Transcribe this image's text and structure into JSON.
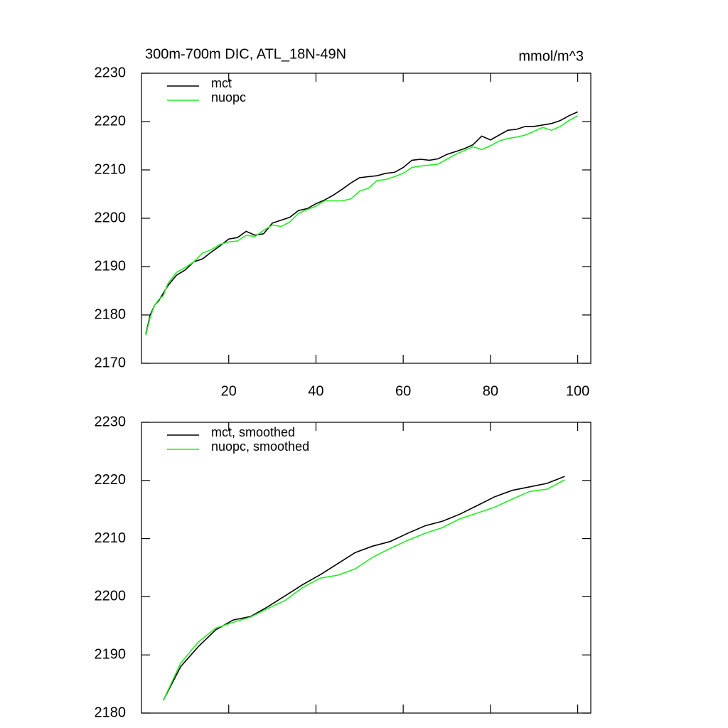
{
  "chart_data": [
    {
      "type": "line",
      "title": "300m-700m DIC, ATL_18N-49N",
      "units": "mmol/m^3",
      "x": [
        1,
        2,
        3,
        4,
        5,
        6,
        8,
        10,
        12,
        14,
        16,
        18,
        20,
        22,
        24,
        26,
        28,
        30,
        32,
        34,
        36,
        38,
        40,
        42,
        44,
        46,
        48,
        50,
        52,
        54,
        56,
        58,
        60,
        62,
        64,
        66,
        68,
        70,
        72,
        74,
        76,
        78,
        80,
        82,
        84,
        86,
        88,
        90,
        92,
        94,
        96,
        98,
        100
      ],
      "series": [
        {
          "name": "mct",
          "color": "#000000",
          "values": [
            2176,
            2180,
            2182,
            2183,
            2184.5,
            2186,
            2188.2,
            2189.3,
            2191,
            2191.6,
            2193,
            2194.3,
            2195.7,
            2196,
            2197.3,
            2196.5,
            2196.8,
            2199,
            2199.6,
            2200.2,
            2201.6,
            2202,
            2203,
            2203.8,
            2204.8,
            2206,
            2207.3,
            2208.4,
            2208.6,
            2208.8,
            2209.3,
            2209.5,
            2210.5,
            2212,
            2212.2,
            2212,
            2212.3,
            2213.2,
            2213.8,
            2214.4,
            2215.2,
            2217,
            2216.2,
            2217.2,
            2218.2,
            2218.4,
            2219,
            2219,
            2219.3,
            2219.6,
            2220.2,
            2221.2,
            2222
          ]
        },
        {
          "name": "nuopc",
          "color": "#22ee22",
          "values": [
            2175.8,
            2179.5,
            2182,
            2183.2,
            2184,
            2186.4,
            2188.8,
            2189.8,
            2191,
            2192.8,
            2193.5,
            2194.6,
            2195.1,
            2195.3,
            2196.5,
            2196.2,
            2197.5,
            2198.6,
            2198.3,
            2199.2,
            2201,
            2201.8,
            2202.5,
            2203.6,
            2203.6,
            2203.6,
            2204,
            2205.6,
            2206.2,
            2207.8,
            2208,
            2208.6,
            2209.3,
            2210.5,
            2210.8,
            2211,
            2211.2,
            2212.2,
            2213.2,
            2214,
            2214.8,
            2214.2,
            2215,
            2216,
            2216.5,
            2216.8,
            2217.2,
            2218,
            2218.8,
            2218.2,
            2219,
            2220.2,
            2221.2
          ]
        }
      ],
      "xlim": [
        0,
        103
      ],
      "xticks": [
        20,
        40,
        60,
        80,
        100
      ],
      "xtick_labels": true,
      "ylim": [
        2170,
        2230
      ],
      "yticks": [
        2170,
        2180,
        2190,
        2200,
        2210,
        2220,
        2230
      ]
    },
    {
      "type": "line",
      "x": [
        5,
        9,
        13,
        17,
        21,
        25,
        29,
        33,
        37,
        41,
        45,
        49,
        53,
        57,
        61,
        65,
        69,
        73,
        77,
        81,
        85,
        89,
        93,
        97
      ],
      "series": [
        {
          "name": "mct, smoothed",
          "color": "#000000",
          "values": [
            2182.2,
            2188,
            2191.4,
            2194.3,
            2196,
            2196.6,
            2198.3,
            2200.2,
            2202.1,
            2203.8,
            2205.7,
            2207.6,
            2208.7,
            2209.5,
            2210.9,
            2212.2,
            2213,
            2214.2,
            2215.7,
            2217.2,
            2218.3,
            2218.9,
            2219.5,
            2220.7
          ]
        },
        {
          "name": "nuopc, smoothed",
          "color": "#22ee22",
          "values": [
            2182.2,
            2188.6,
            2192.2,
            2194.6,
            2195.6,
            2196.5,
            2198,
            2199.4,
            2201.6,
            2203.2,
            2203.7,
            2204.8,
            2206.8,
            2208.3,
            2209.7,
            2210.9,
            2211.9,
            2213.4,
            2214.4,
            2215.4,
            2216.8,
            2218.1,
            2218.5,
            2220.1
          ]
        }
      ],
      "xlim": [
        0,
        103
      ],
      "xticks": [
        20,
        40,
        60,
        80,
        100
      ],
      "xtick_labels": false,
      "ylim": [
        2180,
        2230
      ],
      "yticks": [
        2180,
        2190,
        2200,
        2210,
        2220,
        2230
      ]
    }
  ]
}
